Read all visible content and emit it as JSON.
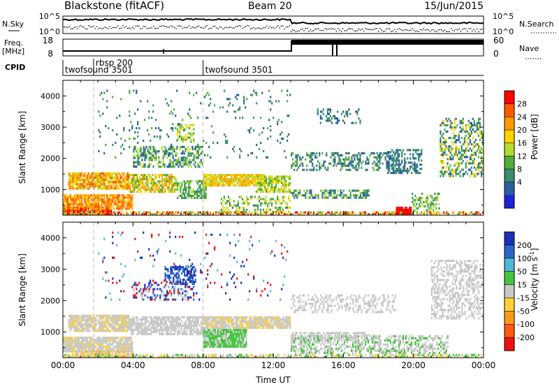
{
  "header": {
    "station": "Blackstone (fitACF)",
    "beam": "Beam 20",
    "date": "15/Jun/2015"
  },
  "top_panels": {
    "nsky_label": "N.Sky",
    "nsearch_label": "N.Search",
    "nsky_ticks": [
      "10^5",
      "10^0"
    ],
    "nsearch_ticks": [
      "10^5",
      "10^0"
    ],
    "freq_label_1": "Freq.",
    "freq_label_2": "[MHz]",
    "freq_ticks": [
      "18",
      "8"
    ],
    "nave_label": "Nave",
    "nave_ticks": [
      "60",
      "0"
    ],
    "cpid_label": "CPID",
    "cpid_entries": [
      {
        "name": "twofsound 3501",
        "t": 0.0
      },
      {
        "name": "rbsp 200",
        "t": 1.75
      },
      {
        "name": "twofsound 3501",
        "t": 8.0
      }
    ]
  },
  "chart_data": [
    {
      "type": "heatmap",
      "title": "Power",
      "ylabel": "Slant Range [km]",
      "xlabel": "",
      "colorbar_label": "Power [dB]",
      "colorbar_ticks": [
        "28",
        "24",
        "20",
        "16",
        "12",
        "8",
        "4"
      ],
      "colorbar_colors": [
        "#ff0000",
        "#ff5a00",
        "#ff9c00",
        "#ffd200",
        "#b4dc2e",
        "#52ad3c",
        "#3a8c6e",
        "#2b5fa0",
        "#1b22d8"
      ],
      "xlim": [
        0,
        24
      ],
      "ylim": [
        180,
        4500
      ],
      "yticks": [
        "4000",
        "3000",
        "2000",
        "1000"
      ],
      "ytick_values": [
        4000,
        3000,
        2000,
        1000
      ],
      "vlines_hours": [
        1.75,
        8.0
      ]
    },
    {
      "type": "heatmap",
      "title": "Velocity",
      "ylabel": "Slant Range [km]",
      "xlabel": "Time UT",
      "colorbar_label": "Velocity [m s-1]",
      "colorbar_ticks": [
        "200",
        "100",
        "50",
        "15",
        "-15",
        "-50",
        "-100",
        "-200"
      ],
      "colorbar_colors": [
        "#1b2fb8",
        "#2c66c8",
        "#4fb8d6",
        "#44c43d",
        "#c8c8c8",
        "#ffd23a",
        "#ff9a1a",
        "#ff5a10",
        "#ee1010"
      ],
      "xlim": [
        0,
        24
      ],
      "ylim": [
        180,
        4500
      ],
      "yticks": [
        "4000",
        "3000",
        "2000",
        "1000"
      ],
      "ytick_values": [
        4000,
        3000,
        2000,
        1000
      ],
      "xticks": [
        "00:00",
        "04:00",
        "08:00",
        "12:00",
        "16:00",
        "20:00",
        "00:00"
      ],
      "xtick_values": [
        0,
        4,
        8,
        12,
        16,
        20,
        24
      ],
      "vlines_hours": [
        1.75,
        8.0
      ]
    }
  ]
}
